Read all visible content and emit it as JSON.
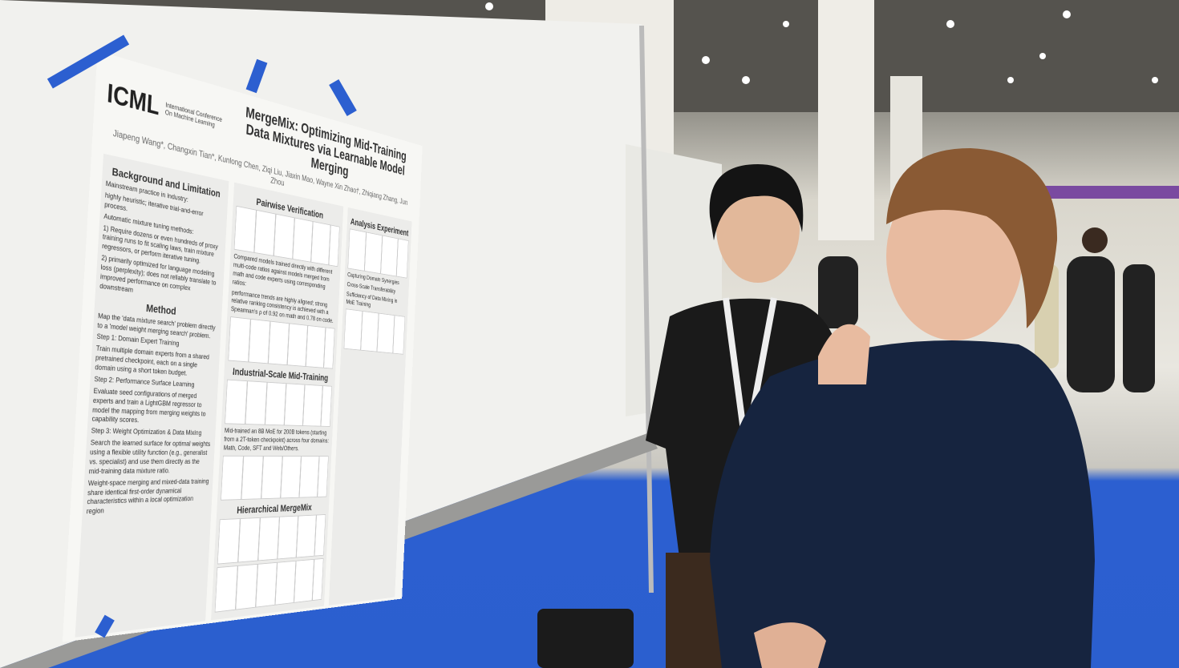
{
  "poster": {
    "logo": "ICML",
    "logo_subtitle": "International Conference On Machine Learning",
    "title": "MergeMix: Optimizing Mid-Training Data Mixtures via Learnable Model Merging",
    "authors": "Jiapeng Wang*, Changxin Tian*, Kunlong Chen, Ziqi Liu, Jiaxin Mao, Wayne Xin Zhao†, Zhiqiang Zhang, Jun Zhou",
    "left": [
      {
        "heading": "Background and Limitation",
        "lines": [
          "Mainstream practice in industry:",
          "highly heuristic; iterative trial-and-error process.",
          "Automatic mixture tuning methods:",
          "1) Require dozens or even hundreds of proxy training runs to fit scaling laws, train mixture regressors, or perform iterative tuning.",
          "2) primarily optimized for language modeling loss (perplexity); does not reliably translate to improved performance on complex downstream"
        ]
      },
      {
        "heading": "Method",
        "lines": [
          "Map the 'data mixture search' problem directly to a 'model weight merging search' problem.",
          "Step 1: Domain Expert Training",
          "Train multiple domain experts from a shared pretrained checkpoint, each on a single domain using a short token budget.",
          "Step 2: Performance Surface Learning",
          "Evaluate seed configurations of merged experts and train a LightGBM regressor to model the mapping from merging weights to capability scores.",
          "Step 3: Weight Optimization & Data Mixing",
          "Search the learned surface for optimal weights using a flexible utility function (e.g., generalist vs. specialist) and use them directly as the mid-training data mixture ratio.",
          "Weight-space merging and mixed-data training share identical first-order dynamical characteristics within a local optimization region"
        ]
      }
    ],
    "middle": [
      {
        "heading": "Pairwise Verification",
        "lines": [
          "Compared models trained directly with different multi-code ratios against models merged from math and code experts using corresponding ratios:",
          "performance trends are highly aligned; strong relative ranking consistency is achieved with a Spearman's ρ of 0.92 on math and 0.78 on code."
        ]
      },
      {
        "heading": "Industrial-Scale Mid-Training",
        "lines": [
          "Mid-trained an 8B MoE for 200B tokens (starting from a 2T-token checkpoint) across four domains: Math, Code, SFT and Web/Others."
        ]
      },
      {
        "heading": "Hierarchical MergeMix",
        "lines": []
      }
    ],
    "right": [
      {
        "heading": "Analysis Experiment",
        "lines": [
          "Capturing Domain Synergies",
          "Cross-Scale Transferability",
          "Sufficiency of Data Mixing in MoE Training"
        ]
      }
    ]
  }
}
